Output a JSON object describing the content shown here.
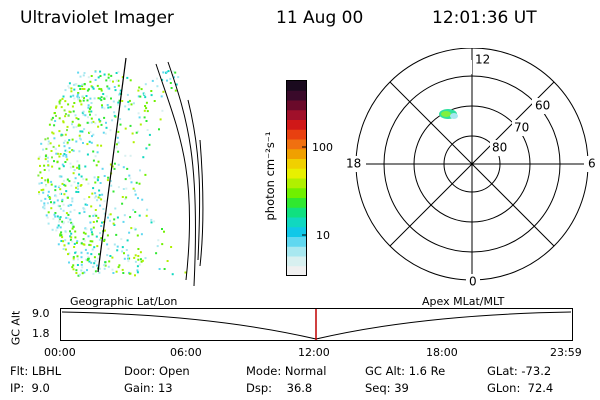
{
  "header": {
    "instrument": "Ultraviolet Imager",
    "date": "11 Aug 00",
    "time": "12:01:36 UT"
  },
  "colorbar": {
    "unit_label": "photon cm⁻²s⁻¹",
    "ticks": [
      "100",
      "10"
    ],
    "colors": [
      "#1a0a1e",
      "#3a0a2a",
      "#6a0a2a",
      "#a0102a",
      "#d01818",
      "#e84010",
      "#f07010",
      "#f0a000",
      "#f0d000",
      "#e8f000",
      "#b0f000",
      "#70f000",
      "#30e830",
      "#10e080",
      "#10d8c0",
      "#10c8e8",
      "#60d8f0",
      "#a8e8f0",
      "#d8f0f0",
      "#f0f0f0"
    ]
  },
  "polar": {
    "labels": [
      "12",
      "6",
      "18",
      "0",
      "60",
      "70",
      "80"
    ]
  },
  "timeline": {
    "left_title": "Geographic Lat/Lon",
    "right_title": "Apex MLat/MLT",
    "axis_title": "GC Alt",
    "y_ticks": [
      "9.0",
      "1.8"
    ],
    "x_ticks": [
      "00:00",
      "06:00",
      "12:00",
      "18:00",
      "23:59"
    ],
    "marker_color": "#c00000"
  },
  "footer": {
    "row1": [
      "Flt: LBHL",
      "Door: Open",
      "Mode: Normal",
      "GC Alt: 1.6 Re",
      "GLat: -73.2"
    ],
    "row2": [
      "IP:  9.0",
      "Gain: 13",
      "Dsp:    36.8",
      "Seq: 39",
      "GLon:  72.4"
    ]
  }
}
